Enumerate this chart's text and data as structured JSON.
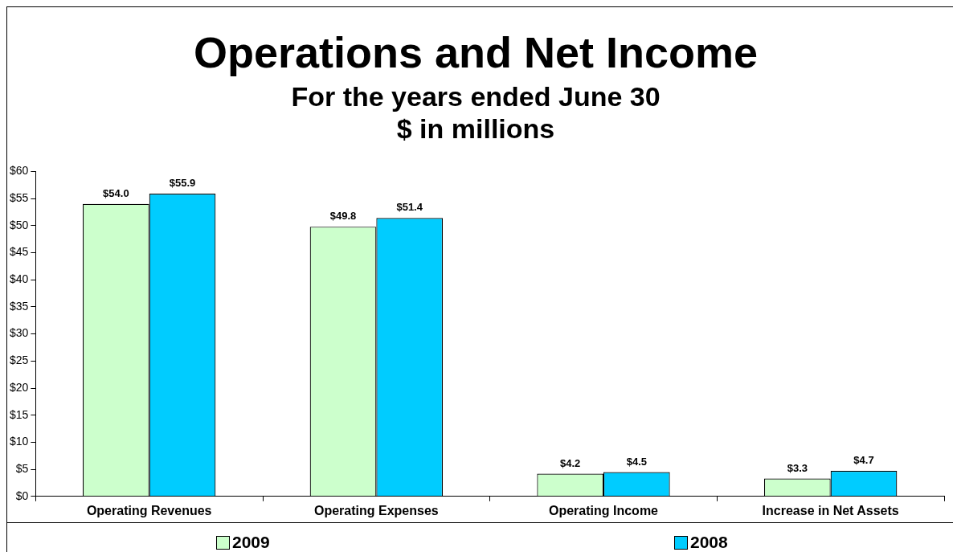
{
  "chart_data": {
    "type": "bar",
    "title": "Operations and Net Income",
    "subtitle": "For the years ended June 30\n$ in millions",
    "categories": [
      "Operating Revenues",
      "Operating Expenses",
      "Operating Income",
      "Increase in Net Assets"
    ],
    "series": [
      {
        "name": "2009",
        "color": "#ccffcc",
        "values": [
          54.0,
          49.8,
          4.2,
          3.3
        ],
        "value_labels": [
          "$54.0",
          "$49.8",
          "$4.2",
          "$3.3"
        ]
      },
      {
        "name": "2008",
        "color": "#00ccff",
        "values": [
          55.9,
          51.4,
          4.5,
          4.7
        ],
        "value_labels": [
          "$55.9",
          "$51.4",
          "$4.5",
          "$4.7"
        ]
      }
    ],
    "ylim": [
      0,
      60
    ],
    "yticks": [
      {
        "value": 0,
        "label": "$0"
      },
      {
        "value": 5,
        "label": "$5"
      },
      {
        "value": 10,
        "label": "$10"
      },
      {
        "value": 15,
        "label": "$15"
      },
      {
        "value": 20,
        "label": "$20"
      },
      {
        "value": 25,
        "label": "$25"
      },
      {
        "value": 30,
        "label": "$30"
      },
      {
        "value": 35,
        "label": "$35"
      },
      {
        "value": 40,
        "label": "$40"
      },
      {
        "value": 45,
        "label": "$45"
      },
      {
        "value": 50,
        "label": "$50"
      },
      {
        "value": 55,
        "label": "$55"
      },
      {
        "value": 60,
        "label": "$60"
      }
    ],
    "grid": false,
    "legend": "bottom"
  }
}
